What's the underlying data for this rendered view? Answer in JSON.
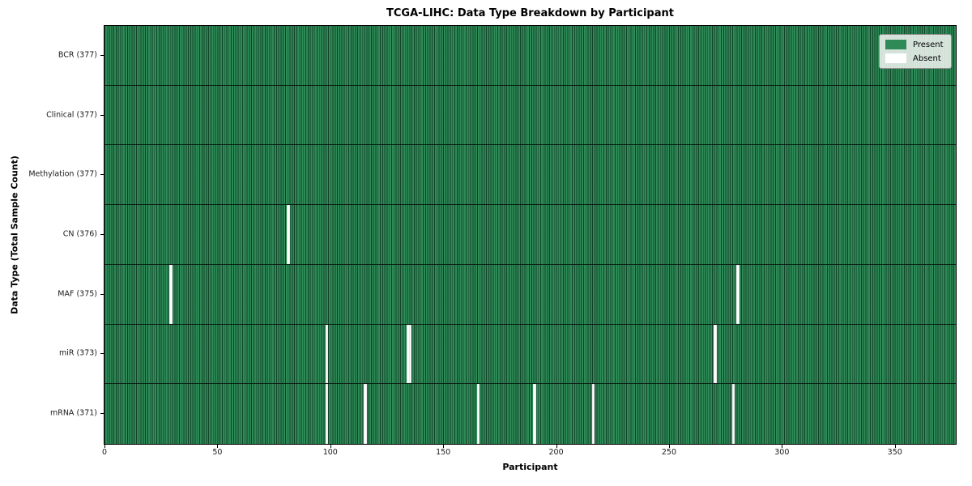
{
  "title": "TCGA-LIHC: Data Type Breakdown by Participant",
  "colors": {
    "present": "#2e8b57",
    "absent": "#ffffff",
    "cell_edge": "rgba(8,38,22,0.72)",
    "row_separator": "rgba(5,20,10,0.85)",
    "axis": "#000000"
  },
  "legend_labels": [
    "Present",
    "Absent"
  ],
  "chart_data": {
    "type": "heatmap",
    "title": "TCGA-LIHC: Data Type Breakdown by Participant",
    "xlabel": "Participant",
    "ylabel": "Data Type (Total Sample Count)",
    "legend": [
      "Present",
      "Absent"
    ],
    "legend_position": "upper right",
    "n_participants": 377,
    "x_range": [
      0,
      377
    ],
    "x_ticks": [
      0,
      50,
      100,
      150,
      200,
      250,
      300,
      350
    ],
    "rows": [
      {
        "label": "BCR (377)",
        "data_type": "BCR",
        "present_count": 377,
        "absent_participants": []
      },
      {
        "label": "Clinical (377)",
        "data_type": "Clinical",
        "present_count": 377,
        "absent_participants": []
      },
      {
        "label": "Methylation (377)",
        "data_type": "Methylation",
        "present_count": 377,
        "absent_participants": []
      },
      {
        "label": "CN (376)",
        "data_type": "CN",
        "present_count": 376,
        "absent_participants": [
          81
        ]
      },
      {
        "label": "MAF (375)",
        "data_type": "MAF",
        "present_count": 375,
        "absent_participants": [
          29,
          280
        ]
      },
      {
        "label": "miR (373)",
        "data_type": "miR",
        "present_count": 373,
        "absent_participants": [
          98,
          134,
          135,
          270
        ]
      },
      {
        "label": "mRNA (371)",
        "data_type": "mRNA",
        "present_count": 371,
        "absent_participants": [
          98,
          115,
          165,
          190,
          216,
          278
        ]
      }
    ]
  }
}
